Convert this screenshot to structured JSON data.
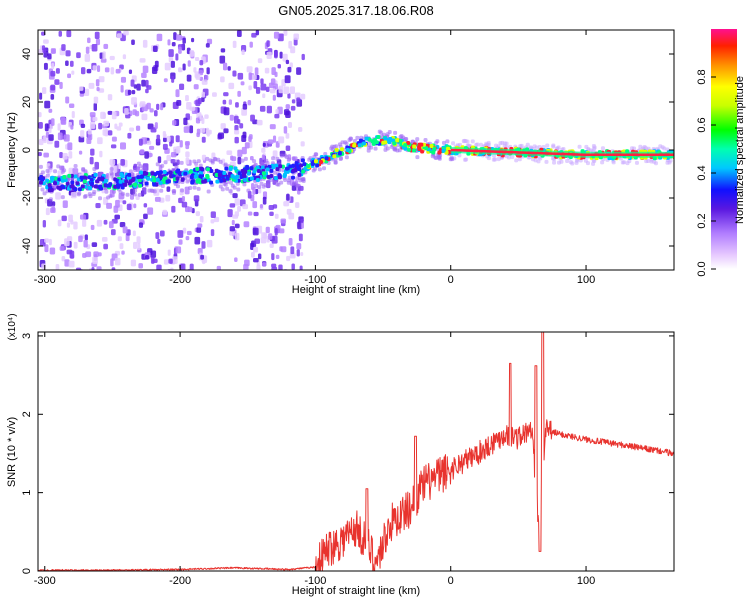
{
  "title": "GN05.2025.317.18.06.R08",
  "colors": {
    "snr_line": "#e8332e",
    "spectrogram_low": "#6a1ed8",
    "frame": "#000000"
  },
  "chart_data": [
    {
      "type": "heatmap",
      "name": "spectrogram",
      "xlabel": "Height of straight line (km)",
      "ylabel": "Frequency (Hz)",
      "xlim": [
        -305,
        165
      ],
      "ylim": [
        -50,
        50
      ],
      "xticks": [
        -300,
        -200,
        -100,
        0,
        100
      ],
      "yticks": [
        -40,
        -20,
        0,
        20,
        40
      ],
      "colorbar": {
        "label": "Normalized spectral amplitude",
        "range": [
          0,
          1
        ],
        "ticks": [
          "0.0",
          "0.2",
          "0.4",
          "0.6",
          "0.8"
        ]
      },
      "ridge": [
        {
          "x": -305,
          "y": -14
        },
        {
          "x": -250,
          "y": -13
        },
        {
          "x": -200,
          "y": -11
        },
        {
          "x": -150,
          "y": -10
        },
        {
          "x": -120,
          "y": -9
        },
        {
          "x": -100,
          "y": -5
        },
        {
          "x": -80,
          "y": 0
        },
        {
          "x": -60,
          "y": 4
        },
        {
          "x": -45,
          "y": 4
        },
        {
          "x": -30,
          "y": 1
        },
        {
          "x": 0,
          "y": 0
        },
        {
          "x": 50,
          "y": -1
        },
        {
          "x": 100,
          "y": -2
        },
        {
          "x": 165,
          "y": -2
        }
      ]
    },
    {
      "type": "line",
      "name": "snr",
      "xlabel": "Height of straight line (km)",
      "ylabel": "SNR (10 * v/v)",
      "y_multiplier": "(x10⁴)",
      "xlim": [
        -305,
        165
      ],
      "ylim": [
        0,
        3.05
      ],
      "xticks": [
        -300,
        -200,
        -100,
        0,
        100
      ],
      "yticks": [
        0,
        1,
        2,
        3
      ],
      "series": [
        {
          "name": "SNR",
          "points": [
            {
              "x": -305,
              "y": 0.01
            },
            {
              "x": -250,
              "y": 0.01
            },
            {
              "x": -200,
              "y": 0.02
            },
            {
              "x": -160,
              "y": 0.04
            },
            {
              "x": -120,
              "y": 0.02
            },
            {
              "x": -100,
              "y": 0.05
            },
            {
              "x": -90,
              "y": 0.3
            },
            {
              "x": -80,
              "y": 0.4
            },
            {
              "x": -70,
              "y": 0.55
            },
            {
              "x": -60,
              "y": 0.3
            },
            {
              "x": -55,
              "y": 0.1
            },
            {
              "x": -45,
              "y": 0.6
            },
            {
              "x": -30,
              "y": 0.8
            },
            {
              "x": -20,
              "y": 1.1
            },
            {
              "x": 0,
              "y": 1.3
            },
            {
              "x": 20,
              "y": 1.5
            },
            {
              "x": 40,
              "y": 1.75
            },
            {
              "x": 50,
              "y": 1.7
            },
            {
              "x": 60,
              "y": 1.8
            },
            {
              "x": 65,
              "y": 0.6
            },
            {
              "x": 70,
              "y": 1.8
            },
            {
              "x": 80,
              "y": 1.75
            },
            {
              "x": 100,
              "y": 1.68
            },
            {
              "x": 130,
              "y": 1.6
            },
            {
              "x": 165,
              "y": 1.5
            }
          ],
          "peaks": [
            {
              "x": -62,
              "y": 1.05
            },
            {
              "x": -26,
              "y": 1.72
            },
            {
              "x": 44,
              "y": 2.65
            },
            {
              "x": 63,
              "y": 2.62
            },
            {
              "x": 68,
              "y": 3.05
            },
            {
              "x": 66,
              "y": 0.25
            }
          ]
        }
      ]
    }
  ]
}
